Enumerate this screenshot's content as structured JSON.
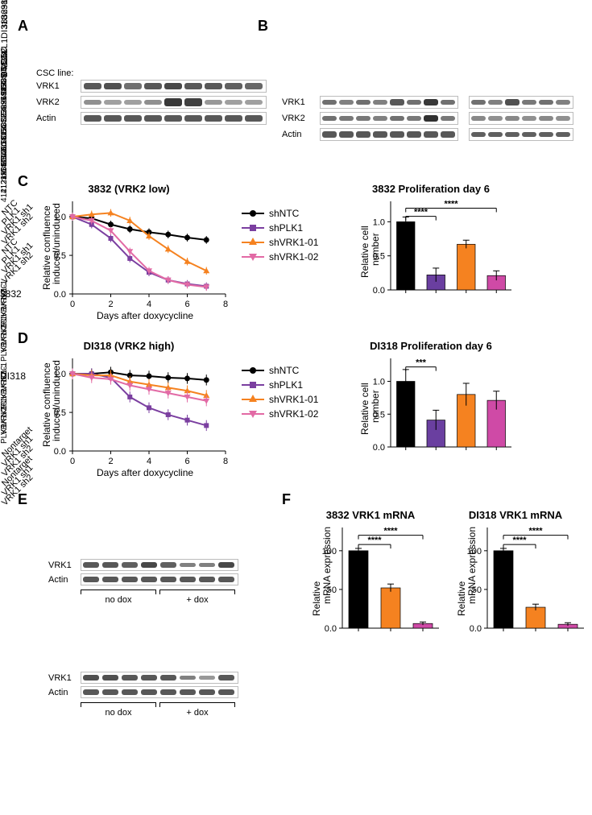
{
  "panels": {
    "A": "A",
    "B": "B",
    "C": "C",
    "D": "D",
    "E": "E",
    "F": "F"
  },
  "panelA": {
    "row_header": "CSC line:",
    "lanes": [
      "4121",
      "387",
      "3691",
      "3832",
      "DI318",
      "L1",
      "L2",
      "23M",
      "BT124"
    ],
    "rows": [
      "VRK1",
      "VRK2",
      "Actin"
    ],
    "intensity": {
      "VRK1": [
        0.7,
        0.75,
        0.55,
        0.7,
        0.8,
        0.7,
        0.7,
        0.65,
        0.6
      ],
      "VRK2": [
        0.35,
        0.25,
        0.25,
        0.35,
        0.9,
        0.85,
        0.3,
        0.25,
        0.25
      ],
      "Actin": [
        0.7,
        0.7,
        0.7,
        0.7,
        0.7,
        0.7,
        0.7,
        0.7,
        0.7
      ]
    }
  },
  "panelB": {
    "lanes_left": [
      "387 CSC",
      "387 non-CSC",
      "3691 CSC",
      "3691 non-CSC",
      "3832 CSC",
      "3832 non-CSC",
      "L1 CSC",
      "L1 non-CSC"
    ],
    "lanes_right": [
      "L2 CSC",
      "L2 non-CSC",
      "23M CSC",
      "23M non-CSC",
      "4121 CSC",
      "4121 non-CSC"
    ],
    "rows": [
      "VRK1",
      "VRK2",
      "Actin"
    ],
    "intensity_left": {
      "VRK1": [
        0.55,
        0.45,
        0.55,
        0.45,
        0.7,
        0.55,
        0.9,
        0.55
      ],
      "VRK2": [
        0.55,
        0.5,
        0.5,
        0.45,
        0.55,
        0.5,
        0.95,
        0.5
      ],
      "Actin": [
        0.7,
        0.7,
        0.7,
        0.7,
        0.7,
        0.7,
        0.7,
        0.7
      ]
    },
    "intensity_right": {
      "VRK1": [
        0.55,
        0.45,
        0.75,
        0.5,
        0.55,
        0.45
      ],
      "VRK2": [
        0.4,
        0.35,
        0.4,
        0.35,
        0.4,
        0.35
      ],
      "Actin": [
        0.65,
        0.65,
        0.65,
        0.65,
        0.65,
        0.65
      ]
    }
  },
  "lineChartCommon": {
    "x_label": "Days after doxycycline",
    "y_label": "Relative confluence\ninduced/uninduced",
    "xlim": [
      0,
      8
    ],
    "ylim": [
      0,
      1.2
    ],
    "xticks": [
      0,
      2,
      4,
      6,
      8
    ],
    "yticks": [
      0.0,
      0.5,
      1.0
    ],
    "series_labels": [
      "shNTC",
      "shPLK1",
      "shVRK1-01",
      "shVRK1-02"
    ],
    "colors": {
      "shNTC": "#000000",
      "shPLK1": "#7b3fa0",
      "shVRK1-01": "#f58220",
      "shVRK1-02": "#e26aa5"
    },
    "markers": {
      "shNTC": "circle",
      "shPLK1": "square",
      "shVRK1-01": "tri-up",
      "shVRK1-02": "tri-down"
    }
  },
  "panelC": {
    "title": "3832 (VRK2 low)",
    "x": [
      0,
      1,
      2,
      3,
      4,
      5,
      6,
      7
    ],
    "shNTC": [
      1.0,
      0.98,
      0.9,
      0.84,
      0.8,
      0.77,
      0.73,
      0.7
    ],
    "shPLK1": [
      1.0,
      0.9,
      0.72,
      0.46,
      0.28,
      0.18,
      0.13,
      0.1
    ],
    "shVRK1-01": [
      1.0,
      1.03,
      1.05,
      0.95,
      0.75,
      0.58,
      0.42,
      0.3
    ],
    "shVRK1-02": [
      1.0,
      0.95,
      0.82,
      0.55,
      0.3,
      0.18,
      0.12,
      0.09
    ],
    "err": 0.05,
    "bar": {
      "title": "3832 Proliferation day 6",
      "y_label": "Relative cell\nnumber",
      "cats": [
        "NTC",
        "PLK1",
        "VRK1 sh1",
        "VRK1 sh2"
      ],
      "vals": [
        1.0,
        0.22,
        0.67,
        0.21
      ],
      "errs": [
        0.07,
        0.1,
        0.06,
        0.07
      ],
      "sig": [
        {
          "from": 0,
          "to": 1,
          "label": "****",
          "y": 1.08
        },
        {
          "from": 0,
          "to": 3,
          "label": "****",
          "y": 1.2
        }
      ],
      "colors": [
        "#000000",
        "#6a3fa0",
        "#f58220",
        "#cf4aa6"
      ],
      "ylim": [
        0,
        1.3
      ],
      "yticks": [
        0.0,
        0.5,
        1.0
      ]
    }
  },
  "panelD": {
    "title": "DI318 (VRK2 high)",
    "x": [
      0,
      1,
      2,
      3,
      4,
      5,
      6,
      7
    ],
    "shNTC": [
      1.0,
      1.0,
      1.02,
      0.98,
      0.97,
      0.95,
      0.94,
      0.92
    ],
    "shPLK1": [
      1.0,
      1.0,
      0.95,
      0.7,
      0.56,
      0.47,
      0.4,
      0.33
    ],
    "shVRK1-01": [
      1.0,
      0.98,
      0.98,
      0.9,
      0.86,
      0.82,
      0.78,
      0.72
    ],
    "shVRK1-02": [
      1.0,
      0.95,
      0.93,
      0.85,
      0.8,
      0.75,
      0.7,
      0.65
    ],
    "err": 0.07,
    "bar": {
      "title": "DI318 Proliferation day 6",
      "y_label": "Relative cell\nnumber",
      "cats": [
        "NTC",
        "PLK1",
        "VRK1 sh1",
        "VRK1 sh2"
      ],
      "vals": [
        1.0,
        0.41,
        0.8,
        0.71
      ],
      "errs": [
        0.18,
        0.15,
        0.17,
        0.14
      ],
      "sig": [
        {
          "from": 0,
          "to": 1,
          "label": "***",
          "y": 1.22
        }
      ],
      "colors": [
        "#000000",
        "#6a3fa0",
        "#f58220",
        "#cf4aa6"
      ],
      "ylim": [
        0,
        1.35
      ],
      "yticks": [
        0.0,
        0.5,
        1.0
      ]
    }
  },
  "panelE": {
    "blocks": [
      {
        "title": "3832",
        "lanes": [
          "NTC",
          "VRK1-1",
          "VRK1-2",
          "PLK1",
          "NTC",
          "VRK1-1",
          "VRK1-2",
          "PLK1"
        ],
        "rows": [
          "VRK1",
          "Actin"
        ],
        "group_labels": [
          "no dox",
          "+ dox"
        ],
        "intensity": {
          "VRK1": [
            0.7,
            0.7,
            0.65,
            0.8,
            0.65,
            0.45,
            0.45,
            0.8
          ],
          "Actin": [
            0.7,
            0.7,
            0.7,
            0.7,
            0.7,
            0.7,
            0.7,
            0.7
          ]
        }
      },
      {
        "title": "DI318",
        "lanes": [
          "NTC",
          "VRK1-1",
          "VRK1-2",
          "PLK1",
          "NTC",
          "VRK1-1",
          "VRK1-2",
          "PLK1"
        ],
        "rows": [
          "VRK1",
          "Actin"
        ],
        "group_labels": [
          "no dox",
          "+ dox"
        ],
        "intensity": {
          "VRK1": [
            0.75,
            0.75,
            0.7,
            0.7,
            0.7,
            0.45,
            0.3,
            0.7
          ],
          "Actin": [
            0.7,
            0.7,
            0.7,
            0.7,
            0.7,
            0.7,
            0.7,
            0.7
          ]
        }
      }
    ]
  },
  "panelF": {
    "charts": [
      {
        "title": "3832 VRK1 mRNA",
        "cats": [
          "Nontarget",
          "VRK1 sh1",
          "VRK1 sh2"
        ],
        "vals": [
          100,
          52,
          6
        ],
        "errs": [
          3,
          5,
          2
        ],
        "sig": [
          {
            "from": 0,
            "to": 1,
            "label": "****",
            "y": 108
          },
          {
            "from": 0,
            "to": 2,
            "label": "****",
            "y": 120
          }
        ],
        "colors": [
          "#000000",
          "#f58220",
          "#cf4aa6"
        ],
        "y_label": "Relative\nmRNA expression",
        "ylim": [
          0,
          130
        ],
        "yticks": [
          0,
          50,
          100
        ]
      },
      {
        "title": "DI318 VRK1 mRNA",
        "cats": [
          "Nontarget",
          "VRK1 sh1",
          "VRK1 sh2"
        ],
        "vals": [
          100,
          27,
          5
        ],
        "errs": [
          3,
          4,
          2
        ],
        "sig": [
          {
            "from": 0,
            "to": 1,
            "label": "****",
            "y": 108
          },
          {
            "from": 0,
            "to": 2,
            "label": "****",
            "y": 120
          }
        ],
        "colors": [
          "#000000",
          "#f58220",
          "#cf4aa6"
        ],
        "y_label": "Relative\nmRNA expression",
        "ylim": [
          0,
          130
        ],
        "yticks": [
          0,
          50,
          100
        ]
      }
    ]
  }
}
